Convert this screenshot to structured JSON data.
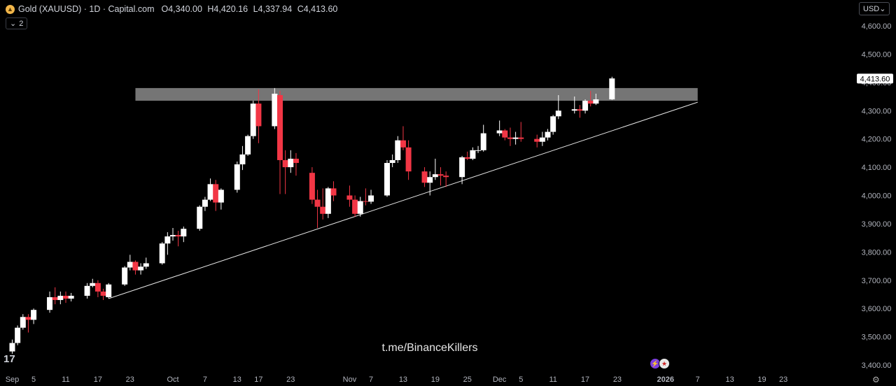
{
  "header": {
    "symbol": "Gold (XAUUSD) · 1D · Capital.com",
    "o_key": "O",
    "o_val": "4,340.00",
    "h_key": "H",
    "h_val": "4,420.16",
    "l_key": "L",
    "l_val": "4,337.94",
    "c_key": "C",
    "c_val": "4,413.60",
    "logo_icon": "gold-coin-icon"
  },
  "indicators_button": {
    "label": "2",
    "icon": "chevron-down-icon"
  },
  "currency_button": {
    "label": "USD",
    "icon": "chevron-down-icon"
  },
  "watermark": "t.me/BinanceKillers",
  "tv_logo": "17",
  "colors": {
    "up": "#ffffff",
    "down": "#f23645",
    "background": "#000000",
    "zone": "#8a8a8a",
    "price_label_bg": "#ffffff"
  },
  "chart_data": {
    "type": "candlestick",
    "title": "Gold (XAUUSD) · 1D · Capital.com",
    "ylim": [
      3390,
      4660
    ],
    "y_ticks": [
      4600,
      4500,
      4400,
      4300,
      4200,
      4100,
      4000,
      3900,
      3800,
      3700,
      3600,
      3500,
      3400
    ],
    "y_tick_labels": [
      "4,600.00",
      "4,500.00",
      "4,400.00",
      "4,300.00",
      "4,200.00",
      "4,100.00",
      "4,000.00",
      "3,900.00",
      "3,800.00",
      "3,700.00",
      "3,600.00",
      "3,500.00",
      "3,400.00"
    ],
    "last_price": 4413.6,
    "last_price_label": "4,413.60",
    "x_ticks": [
      {
        "label": "Sep",
        "date": "2025-09-01"
      },
      {
        "label": "5",
        "date": "2025-09-05"
      },
      {
        "label": "11",
        "date": "2025-09-11"
      },
      {
        "label": "17",
        "date": "2025-09-17"
      },
      {
        "label": "23",
        "date": "2025-09-23"
      },
      {
        "label": "Oct",
        "date": "2025-10-01"
      },
      {
        "label": "7",
        "date": "2025-10-07"
      },
      {
        "label": "13",
        "date": "2025-10-13"
      },
      {
        "label": "17",
        "date": "2025-10-17"
      },
      {
        "label": "23",
        "date": "2025-10-23"
      },
      {
        "label": "Nov",
        "date": "2025-11-03"
      },
      {
        "label": "7",
        "date": "2025-11-07"
      },
      {
        "label": "13",
        "date": "2025-11-13"
      },
      {
        "label": "19",
        "date": "2025-11-19"
      },
      {
        "label": "25",
        "date": "2025-11-25"
      },
      {
        "label": "Dec",
        "date": "2025-12-01"
      },
      {
        "label": "5",
        "date": "2025-12-05"
      },
      {
        "label": "11",
        "date": "2025-12-11"
      },
      {
        "label": "17",
        "date": "2025-12-17"
      },
      {
        "label": "23",
        "date": "2025-12-23"
      },
      {
        "label": "2026",
        "date": "2026-01-01"
      },
      {
        "label": "7",
        "date": "2026-01-07"
      },
      {
        "label": "13",
        "date": "2026-01-13"
      },
      {
        "label": "19",
        "date": "2026-01-19"
      },
      {
        "label": "23",
        "date": "2026-01-23"
      }
    ],
    "candles": [
      {
        "d": "2025-08-29",
        "o": 3420,
        "h": 3455,
        "l": 3415,
        "c": 3448
      },
      {
        "d": "2025-09-01",
        "o": 3448,
        "h": 3490,
        "l": 3440,
        "c": 3478
      },
      {
        "d": "2025-09-02",
        "o": 3478,
        "h": 3540,
        "l": 3470,
        "c": 3532
      },
      {
        "d": "2025-09-03",
        "o": 3532,
        "h": 3580,
        "l": 3525,
        "c": 3570
      },
      {
        "d": "2025-09-04",
        "o": 3570,
        "h": 3580,
        "l": 3515,
        "c": 3560
      },
      {
        "d": "2025-09-05",
        "o": 3560,
        "h": 3600,
        "l": 3545,
        "c": 3595
      },
      {
        "d": "2025-09-08",
        "o": 3595,
        "h": 3660,
        "l": 3585,
        "c": 3640
      },
      {
        "d": "2025-09-09",
        "o": 3640,
        "h": 3675,
        "l": 3615,
        "c": 3630
      },
      {
        "d": "2025-09-10",
        "o": 3630,
        "h": 3660,
        "l": 3615,
        "c": 3645
      },
      {
        "d": "2025-09-11",
        "o": 3645,
        "h": 3660,
        "l": 3620,
        "c": 3635
      },
      {
        "d": "2025-09-12",
        "o": 3635,
        "h": 3655,
        "l": 3625,
        "c": 3645
      },
      {
        "d": "2025-09-15",
        "o": 3645,
        "h": 3690,
        "l": 3635,
        "c": 3680
      },
      {
        "d": "2025-09-16",
        "o": 3680,
        "h": 3705,
        "l": 3675,
        "c": 3690
      },
      {
        "d": "2025-09-17",
        "o": 3690,
        "h": 3700,
        "l": 3640,
        "c": 3660
      },
      {
        "d": "2025-09-18",
        "o": 3660,
        "h": 3670,
        "l": 3630,
        "c": 3645
      },
      {
        "d": "2025-09-19",
        "o": 3640,
        "h": 3690,
        "l": 3635,
        "c": 3685
      },
      {
        "d": "2025-09-22",
        "o": 3685,
        "h": 3750,
        "l": 3680,
        "c": 3745
      },
      {
        "d": "2025-09-23",
        "o": 3745,
        "h": 3790,
        "l": 3735,
        "c": 3765
      },
      {
        "d": "2025-09-24",
        "o": 3765,
        "h": 3770,
        "l": 3720,
        "c": 3735
      },
      {
        "d": "2025-09-25",
        "o": 3735,
        "h": 3760,
        "l": 3720,
        "c": 3748
      },
      {
        "d": "2025-09-26",
        "o": 3748,
        "h": 3780,
        "l": 3740,
        "c": 3760
      },
      {
        "d": "2025-09-29",
        "o": 3760,
        "h": 3835,
        "l": 3755,
        "c": 3830
      },
      {
        "d": "2025-09-30",
        "o": 3830,
        "h": 3870,
        "l": 3790,
        "c": 3855
      },
      {
        "d": "2025-10-01",
        "o": 3855,
        "h": 3885,
        "l": 3840,
        "c": 3860
      },
      {
        "d": "2025-10-02",
        "o": 3860,
        "h": 3875,
        "l": 3820,
        "c": 3855
      },
      {
        "d": "2025-10-03",
        "o": 3855,
        "h": 3890,
        "l": 3835,
        "c": 3882
      },
      {
        "d": "2025-10-06",
        "o": 3882,
        "h": 3965,
        "l": 3875,
        "c": 3960
      },
      {
        "d": "2025-10-07",
        "o": 3960,
        "h": 3995,
        "l": 3945,
        "c": 3985
      },
      {
        "d": "2025-10-08",
        "o": 3985,
        "h": 4060,
        "l": 3980,
        "c": 4040
      },
      {
        "d": "2025-10-09",
        "o": 4040,
        "h": 4055,
        "l": 3945,
        "c": 3975
      },
      {
        "d": "2025-10-10",
        "o": 3975,
        "h": 4025,
        "l": 3950,
        "c": 4020
      },
      {
        "d": "2025-10-13",
        "o": 4020,
        "h": 4120,
        "l": 4010,
        "c": 4110
      },
      {
        "d": "2025-10-14",
        "o": 4110,
        "h": 4175,
        "l": 4090,
        "c": 4145
      },
      {
        "d": "2025-10-15",
        "o": 4145,
        "h": 4215,
        "l": 4140,
        "c": 4210
      },
      {
        "d": "2025-10-16",
        "o": 4210,
        "h": 4335,
        "l": 4200,
        "c": 4325
      },
      {
        "d": "2025-10-17",
        "o": 4325,
        "h": 4375,
        "l": 4185,
        "c": 4245
      },
      {
        "d": "2025-10-20",
        "o": 4245,
        "h": 4380,
        "l": 4235,
        "c": 4360
      },
      {
        "d": "2025-10-21",
        "o": 4355,
        "h": 4370,
        "l": 4005,
        "c": 4125
      },
      {
        "d": "2025-10-22",
        "o": 4125,
        "h": 4160,
        "l": 4005,
        "c": 4100
      },
      {
        "d": "2025-10-23",
        "o": 4100,
        "h": 4160,
        "l": 4080,
        "c": 4130
      },
      {
        "d": "2025-10-24",
        "o": 4130,
        "h": 4150,
        "l": 4070,
        "c": 4115
      },
      {
        "d": "2025-10-27",
        "o": 4080,
        "h": 4100,
        "l": 3970,
        "c": 3985
      },
      {
        "d": "2025-10-28",
        "o": 3985,
        "h": 4020,
        "l": 3885,
        "c": 3960
      },
      {
        "d": "2025-10-29",
        "o": 3960,
        "h": 4025,
        "l": 3915,
        "c": 3935
      },
      {
        "d": "2025-10-30",
        "o": 3935,
        "h": 4030,
        "l": 3920,
        "c": 4025
      },
      {
        "d": "2025-10-31",
        "o": 4025,
        "h": 4050,
        "l": 3980,
        "c": 4000
      },
      {
        "d": "2025-11-03",
        "o": 4000,
        "h": 4035,
        "l": 3960,
        "c": 3985
      },
      {
        "d": "2025-11-04",
        "o": 3985,
        "h": 4000,
        "l": 3925,
        "c": 3935
      },
      {
        "d": "2025-11-05",
        "o": 3935,
        "h": 3995,
        "l": 3925,
        "c": 3980
      },
      {
        "d": "2025-11-06",
        "o": 3980,
        "h": 4025,
        "l": 3965,
        "c": 3978
      },
      {
        "d": "2025-11-07",
        "o": 3978,
        "h": 4020,
        "l": 3970,
        "c": 4000
      },
      {
        "d": "2025-11-10",
        "o": 4000,
        "h": 4125,
        "l": 3995,
        "c": 4115
      },
      {
        "d": "2025-11-11",
        "o": 4115,
        "h": 4145,
        "l": 4100,
        "c": 4125
      },
      {
        "d": "2025-11-12",
        "o": 4125,
        "h": 4210,
        "l": 4115,
        "c": 4195
      },
      {
        "d": "2025-11-13",
        "o": 4195,
        "h": 4245,
        "l": 4160,
        "c": 4170
      },
      {
        "d": "2025-11-14",
        "o": 4170,
        "h": 4195,
        "l": 4055,
        "c": 4085
      },
      {
        "d": "2025-11-17",
        "o": 4085,
        "h": 4100,
        "l": 4030,
        "c": 4045
      },
      {
        "d": "2025-11-18",
        "o": 4045,
        "h": 4085,
        "l": 4000,
        "c": 4065
      },
      {
        "d": "2025-11-19",
        "o": 4065,
        "h": 4130,
        "l": 4055,
        "c": 4075
      },
      {
        "d": "2025-11-20",
        "o": 4075,
        "h": 4100,
        "l": 4035,
        "c": 4070
      },
      {
        "d": "2025-11-21",
        "o": 4070,
        "h": 4085,
        "l": 4030,
        "c": 4065
      },
      {
        "d": "2025-11-24",
        "o": 4065,
        "h": 4140,
        "l": 4040,
        "c": 4135
      },
      {
        "d": "2025-11-25",
        "o": 4135,
        "h": 4155,
        "l": 4125,
        "c": 4130
      },
      {
        "d": "2025-11-26",
        "o": 4130,
        "h": 4170,
        "l": 4125,
        "c": 4160
      },
      {
        "d": "2025-11-27",
        "o": 4160,
        "h": 4175,
        "l": 4150,
        "c": 4160
      },
      {
        "d": "2025-11-28",
        "o": 4160,
        "h": 4250,
        "l": 4155,
        "c": 4220
      },
      {
        "d": "2025-12-01",
        "o": 4220,
        "h": 4265,
        "l": 4210,
        "c": 4230
      },
      {
        "d": "2025-12-02",
        "o": 4230,
        "h": 4235,
        "l": 4195,
        "c": 4205
      },
      {
        "d": "2025-12-03",
        "o": 4205,
        "h": 4240,
        "l": 4175,
        "c": 4200
      },
      {
        "d": "2025-12-04",
        "o": 4200,
        "h": 4225,
        "l": 4180,
        "c": 4205
      },
      {
        "d": "2025-12-05",
        "o": 4205,
        "h": 4260,
        "l": 4190,
        "c": 4200
      },
      {
        "d": "2025-12-08",
        "o": 4200,
        "h": 4215,
        "l": 4170,
        "c": 4190
      },
      {
        "d": "2025-12-09",
        "o": 4190,
        "h": 4225,
        "l": 4175,
        "c": 4205
      },
      {
        "d": "2025-12-10",
        "o": 4205,
        "h": 4235,
        "l": 4195,
        "c": 4225
      },
      {
        "d": "2025-12-11",
        "o": 4225,
        "h": 4285,
        "l": 4215,
        "c": 4280
      },
      {
        "d": "2025-12-12",
        "o": 4280,
        "h": 4355,
        "l": 4270,
        "c": 4300
      },
      {
        "d": "2025-12-15",
        "o": 4300,
        "h": 4350,
        "l": 4290,
        "c": 4305
      },
      {
        "d": "2025-12-16",
        "o": 4305,
        "h": 4320,
        "l": 4275,
        "c": 4300
      },
      {
        "d": "2025-12-17",
        "o": 4300,
        "h": 4340,
        "l": 4290,
        "c": 4335
      },
      {
        "d": "2025-12-18",
        "o": 4335,
        "h": 4370,
        "l": 4315,
        "c": 4325
      },
      {
        "d": "2025-12-19",
        "o": 4325,
        "h": 4360,
        "l": 4320,
        "c": 4340
      },
      {
        "d": "2025-12-22",
        "o": 4340,
        "h": 4420,
        "l": 4338,
        "c": 4414
      }
    ],
    "resistance_zone": {
      "y0": 4335,
      "y1": 4380,
      "x0": "2025-09-24",
      "x1": "2026-01-07"
    },
    "trendline": {
      "x0": "2025-09-19",
      "y0": 3635,
      "x1": "2026-01-07",
      "y1": 4330
    }
  }
}
